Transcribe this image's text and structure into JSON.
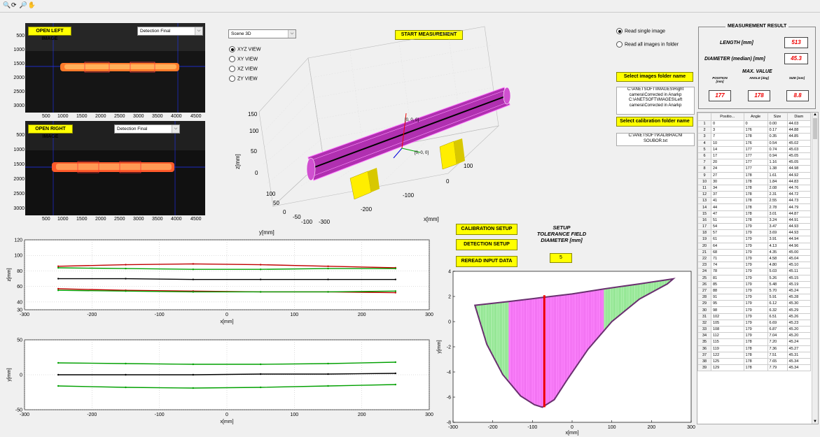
{
  "toolbar": {
    "icons": [
      "zoom-in-icon",
      "rotate-3d-icon",
      "zoom-out-icon",
      "pan-hand-icon"
    ]
  },
  "left_image": {
    "open_label": "OPEN LEFT IMAGE",
    "mode": "Detection Final",
    "y_ticks": [
      "500",
      "1000",
      "1500",
      "2000",
      "2500",
      "3000"
    ],
    "x_ticks": [
      "500",
      "1000",
      "1500",
      "2000",
      "2500",
      "3000",
      "3500",
      "4000",
      "4500"
    ]
  },
  "right_image": {
    "open_label": "OPEN RIGHT IMAGE",
    "mode": "Detection Final",
    "y_ticks": [
      "500",
      "1000",
      "1500",
      "2000",
      "2500",
      "3000"
    ],
    "x_ticks": [
      "500",
      "1000",
      "1500",
      "2000",
      "2500",
      "3000",
      "3500",
      "4000",
      "4500"
    ]
  },
  "scene": {
    "select": "Scene 3D",
    "views": [
      {
        "label": "XYZ VIEW",
        "selected": true
      },
      {
        "label": "XY VIEW",
        "selected": false
      },
      {
        "label": "XZ VIEW",
        "selected": false
      },
      {
        "label": "ZY VIEW",
        "selected": false
      }
    ],
    "start_label": "START MEASUREMENT",
    "z_label": "z[mm]",
    "y_label": "y[mm]",
    "x_label": "x[mm]",
    "z_ticks": [
      "150",
      "100",
      "50",
      "0"
    ],
    "y_ticks": [
      "100",
      "50",
      "0",
      "-50",
      "-100"
    ],
    "x_ticks": [
      "100",
      "0",
      "-100",
      "-200",
      "-300"
    ],
    "origin_label": "[0, 0, 0]",
    "camera_label": "[0, 0, 0]"
  },
  "source": {
    "single_label": "Read single image",
    "all_label": "Read all images in folder",
    "single_selected": true,
    "folder_btn": "Select images folder name",
    "path1": "C:\\ANETSOFT\\IMAGES\\Right camera\\Corrected in Anarkp",
    "path2": "C:\\ANETSOFT\\IMAGES\\Left camera\\Corrected in Anarkp",
    "calib_btn": "Select calibration folder name",
    "calib_path": "C:\\ANETSOFT\\KALIBRACNI SOUBOR.txt"
  },
  "result": {
    "title": "MEASUREMENT RESULT",
    "length_label": "LENGTH [mm]",
    "length_value": "513",
    "diam_label": "DIAMETER (median) [mm]",
    "diam_value": "45.3",
    "max_title": "MAX. VALUE",
    "pos_label": "POSITION [mm]",
    "angle_label": "ANGLE [deg]",
    "size_label": "SIZE [mm]",
    "pos_value": "177",
    "angle_value": "178",
    "size_value": "8.8"
  },
  "table": {
    "headers": [
      "Positio...",
      "Angle",
      "Size",
      "Diam"
    ],
    "rows": [
      [
        "1",
        "0",
        "0",
        "0.00",
        "44.03"
      ],
      [
        "2",
        "3",
        "176",
        "0.17",
        "44.88"
      ],
      [
        "3",
        "7",
        "178",
        "0.35",
        "44.85"
      ],
      [
        "4",
        "10",
        "176",
        "0.54",
        "45.02"
      ],
      [
        "5",
        "14",
        "177",
        "0.74",
        "45.03"
      ],
      [
        "6",
        "17",
        "177",
        "0.94",
        "45.05"
      ],
      [
        "7",
        "20",
        "177",
        "1.16",
        "45.05"
      ],
      [
        "8",
        "24",
        "177",
        "1.38",
        "44.98"
      ],
      [
        "9",
        "27",
        "178",
        "1.61",
        "44.92"
      ],
      [
        "10",
        "30",
        "178",
        "1.84",
        "44.83"
      ],
      [
        "11",
        "34",
        "178",
        "2.08",
        "44.76"
      ],
      [
        "12",
        "37",
        "178",
        "2.31",
        "44.72"
      ],
      [
        "13",
        "41",
        "178",
        "2.55",
        "44.73"
      ],
      [
        "14",
        "44",
        "178",
        "2.78",
        "44.79"
      ],
      [
        "15",
        "47",
        "178",
        "3.01",
        "44.87"
      ],
      [
        "16",
        "51",
        "178",
        "3.24",
        "44.91"
      ],
      [
        "17",
        "54",
        "179",
        "3.47",
        "44.93"
      ],
      [
        "18",
        "57",
        "179",
        "3.69",
        "44.93"
      ],
      [
        "19",
        "61",
        "179",
        "3.91",
        "44.94"
      ],
      [
        "20",
        "64",
        "179",
        "4.13",
        "44.96"
      ],
      [
        "21",
        "68",
        "179",
        "4.35",
        "45.00"
      ],
      [
        "22",
        "71",
        "179",
        "4.58",
        "45.04"
      ],
      [
        "23",
        "74",
        "179",
        "4.80",
        "45.10"
      ],
      [
        "24",
        "78",
        "179",
        "5.03",
        "45.11"
      ],
      [
        "25",
        "81",
        "179",
        "5.26",
        "45.15"
      ],
      [
        "26",
        "85",
        "179",
        "5.48",
        "45.19"
      ],
      [
        "27",
        "88",
        "179",
        "5.70",
        "45.24"
      ],
      [
        "28",
        "91",
        "179",
        "5.91",
        "45.28"
      ],
      [
        "29",
        "95",
        "179",
        "6.12",
        "45.30"
      ],
      [
        "30",
        "98",
        "179",
        "6.32",
        "45.29"
      ],
      [
        "31",
        "102",
        "179",
        "6.51",
        "45.26"
      ],
      [
        "32",
        "105",
        "179",
        "6.69",
        "45.23"
      ],
      [
        "33",
        "108",
        "179",
        "6.87",
        "45.20"
      ],
      [
        "34",
        "112",
        "179",
        "7.04",
        "45.20"
      ],
      [
        "35",
        "115",
        "178",
        "7.20",
        "45.24"
      ],
      [
        "36",
        "119",
        "178",
        "7.36",
        "45.27"
      ],
      [
        "37",
        "122",
        "178",
        "7.51",
        "45.31"
      ],
      [
        "38",
        "125",
        "178",
        "7.65",
        "45.34"
      ],
      [
        "39",
        "129",
        "178",
        "7.79",
        "45.34"
      ]
    ]
  },
  "setup": {
    "calib_btn": "CALIBRATION SETUP",
    "detect_btn": "DETECTION SETUP",
    "reread_btn": "REREAD INPUT DATA",
    "tol_title": "SETUP TOLERANCE FIELD DIAMETER [mm]",
    "tol_value": "5"
  },
  "colors": {
    "button": "#ffff00",
    "result_red": "#e00000",
    "profile_red": "#c00000",
    "profile_green": "#00a000",
    "pink": "#ff66ff"
  },
  "chart_data": [
    {
      "type": "line",
      "id": "xz-profile",
      "xlabel": "x[mm]",
      "ylabel": "z[mm]",
      "xlim": [
        -300,
        300
      ],
      "ylim": [
        30,
        120
      ],
      "x_ticks": [
        -300,
        -200,
        -100,
        0,
        100,
        200,
        300
      ],
      "y_ticks": [
        30,
        40,
        60,
        80,
        100,
        120
      ],
      "series": [
        {
          "color": "red",
          "x": [
            -250,
            -150,
            -50,
            50,
            150,
            250
          ],
          "values": [
            86,
            88,
            89,
            88,
            86,
            84
          ]
        },
        {
          "color": "green",
          "x": [
            -250,
            -150,
            -50,
            50,
            150,
            250
          ],
          "values": [
            84,
            83,
            82,
            82,
            83,
            83
          ]
        },
        {
          "color": "black",
          "x": [
            -250,
            -150,
            -50,
            50,
            150,
            250
          ],
          "values": [
            70,
            70,
            69,
            69,
            69,
            69
          ]
        },
        {
          "color": "red",
          "x": [
            -250,
            -150,
            -50,
            50,
            150,
            250
          ],
          "values": [
            57,
            55,
            54,
            53,
            53,
            52
          ]
        },
        {
          "color": "green",
          "x": [
            -250,
            -150,
            -50,
            50,
            150,
            250
          ],
          "values": [
            55,
            54,
            53,
            53,
            53,
            54
          ]
        }
      ]
    },
    {
      "type": "line",
      "id": "xy-profile",
      "xlabel": "x[mm]",
      "ylabel": "y[mm]",
      "xlim": [
        -300,
        300
      ],
      "ylim": [
        -50,
        50
      ],
      "x_ticks": [
        -300,
        -200,
        -100,
        0,
        100,
        200,
        300
      ],
      "y_ticks": [
        -50,
        0,
        50
      ],
      "series": [
        {
          "color": "green",
          "x": [
            -250,
            -150,
            -50,
            50,
            150,
            250
          ],
          "values": [
            17,
            16,
            15,
            15,
            16,
            18
          ]
        },
        {
          "color": "black",
          "x": [
            -250,
            -150,
            -50,
            50,
            150,
            250
          ],
          "values": [
            0,
            0,
            0,
            1,
            1,
            2
          ]
        },
        {
          "color": "green",
          "x": [
            -250,
            -150,
            -50,
            50,
            150,
            250
          ],
          "values": [
            -16,
            -18,
            -19,
            -18,
            -16,
            -14
          ]
        }
      ]
    },
    {
      "type": "area",
      "id": "tolerance-field",
      "xlabel": "x[mm]",
      "ylabel": "y[mm]",
      "xlim": [
        -300,
        300
      ],
      "ylim": [
        -8,
        4
      ],
      "x_ticks": [
        -300,
        -200,
        -100,
        0,
        100,
        200,
        300
      ],
      "y_ticks": [
        -8,
        -6,
        -4,
        -2,
        0,
        2,
        4
      ],
      "outline": {
        "x": [
          -245,
          -215,
          -175,
          -130,
          -95,
          -75,
          -45,
          -10,
          40,
          100,
          170,
          240,
          255,
          170,
          80,
          0,
          -80,
          -160,
          -245
        ],
        "y": [
          1.3,
          -1.8,
          -4.2,
          -5.9,
          -6.6,
          -6.8,
          -6.2,
          -4.5,
          -2.2,
          0.0,
          1.8,
          3.0,
          3.4,
          3.0,
          2.6,
          2.2,
          1.9,
          1.6,
          1.3
        ]
      },
      "max_x": -70
    }
  ]
}
